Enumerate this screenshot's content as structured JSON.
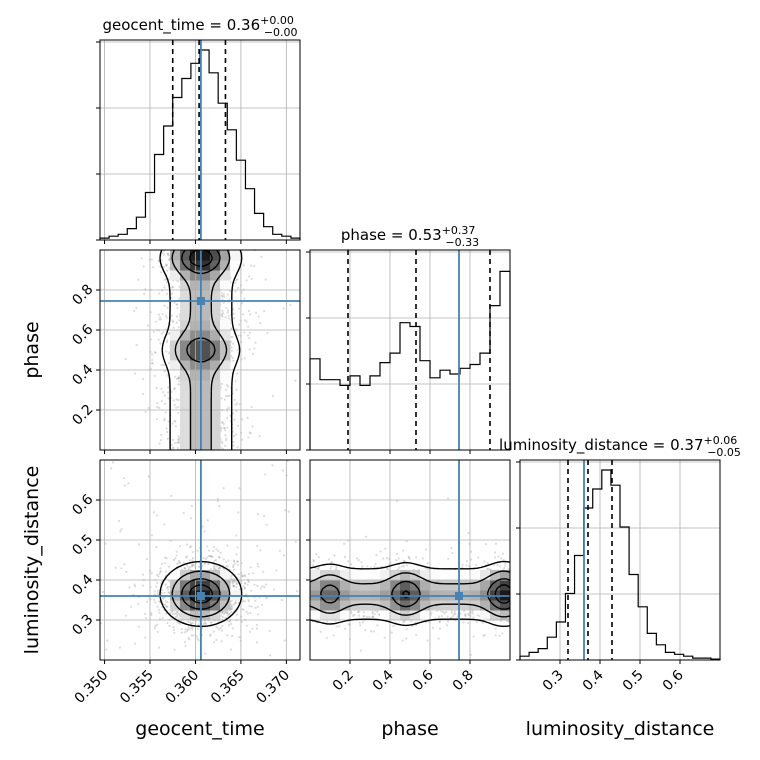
{
  "chart_data": {
    "type": "corner",
    "parameters": [
      "geocent_time",
      "phase",
      "luminosity_distance"
    ],
    "titles": [
      {
        "param": "geocent_time",
        "text": "geocent_time = 0.36",
        "sup": "+0.00",
        "sub": "−0.00"
      },
      {
        "param": "phase",
        "text": "phase = 0.53",
        "sup": "+0.37",
        "sub": "−0.33"
      },
      {
        "param": "luminosity_distance",
        "text": "luminosity_distance = 0.37",
        "sup": "+0.06",
        "sub": "−0.05"
      }
    ],
    "axis_labels": {
      "x": [
        "geocent_time",
        "phase",
        "luminosity_distance"
      ],
      "y": [
        "phase",
        "luminosity_distance"
      ]
    },
    "ranges": {
      "geocent_time": [
        0.3495,
        0.3715
      ],
      "phase": [
        0.0,
        1.0
      ],
      "luminosity_distance": [
        0.2,
        0.7
      ]
    },
    "ticks": {
      "geocent_time": {
        "values": [
          0.35,
          0.355,
          0.36,
          0.365,
          0.37
        ],
        "labels": [
          "0.350",
          "0.355",
          "0.360",
          "0.365",
          "0.370"
        ]
      },
      "phase": {
        "values": [
          0.2,
          0.4,
          0.6,
          0.8
        ],
        "labels": [
          "0.2",
          "0.4",
          "0.6",
          "0.8"
        ]
      },
      "luminosity_distance_x": {
        "values": [
          0.3,
          0.4,
          0.5,
          0.6
        ],
        "labels": [
          "0.3",
          "0.4",
          "0.5",
          "0.6"
        ]
      },
      "luminosity_distance_y": {
        "values": [
          0.3,
          0.4,
          0.5,
          0.6
        ],
        "labels": [
          "0.3",
          "0.4",
          "0.5",
          "0.6"
        ]
      }
    },
    "truths": {
      "geocent_time": 0.3606,
      "phase": 0.745,
      "luminosity_distance": 0.36
    },
    "quantiles": {
      "geocent_time": [
        0.3575,
        0.3604,
        0.3633
      ],
      "phase": [
        0.19,
        0.53,
        0.9
      ],
      "luminosity_distance": [
        0.32,
        0.37,
        0.43
      ]
    },
    "histograms": {
      "geocent_time": {
        "edges_range": [
          0.3495,
          0.3715
        ],
        "counts": [
          0.01,
          0.02,
          0.03,
          0.06,
          0.12,
          0.25,
          0.45,
          0.6,
          0.75,
          0.85,
          0.93,
          1.0,
          0.88,
          0.72,
          0.58,
          0.42,
          0.27,
          0.14,
          0.07,
          0.03,
          0.02,
          0.01
        ]
      },
      "phase": {
        "edges_range": [
          0.0,
          1.0
        ],
        "counts": [
          0.48,
          0.37,
          0.37,
          0.34,
          0.39,
          0.34,
          0.39,
          0.46,
          0.51,
          0.67,
          0.65,
          0.47,
          0.38,
          0.42,
          0.4,
          0.43,
          0.45,
          0.51,
          0.76,
          0.94
        ]
      },
      "luminosity_distance": {
        "edges_range": [
          0.2,
          0.7
        ],
        "counts": [
          0.02,
          0.04,
          0.06,
          0.12,
          0.2,
          0.35,
          0.55,
          0.8,
          0.9,
          1.0,
          0.92,
          0.7,
          0.45,
          0.28,
          0.14,
          0.08,
          0.04,
          0.03,
          0.02,
          0.01,
          0.01,
          0.005
        ]
      }
    },
    "grid": true,
    "colors": {
      "truth": "#4682b4",
      "histogram": "#000000",
      "quantile": "#000000",
      "density": "#000000",
      "scatter": "#9a9a9a"
    }
  }
}
